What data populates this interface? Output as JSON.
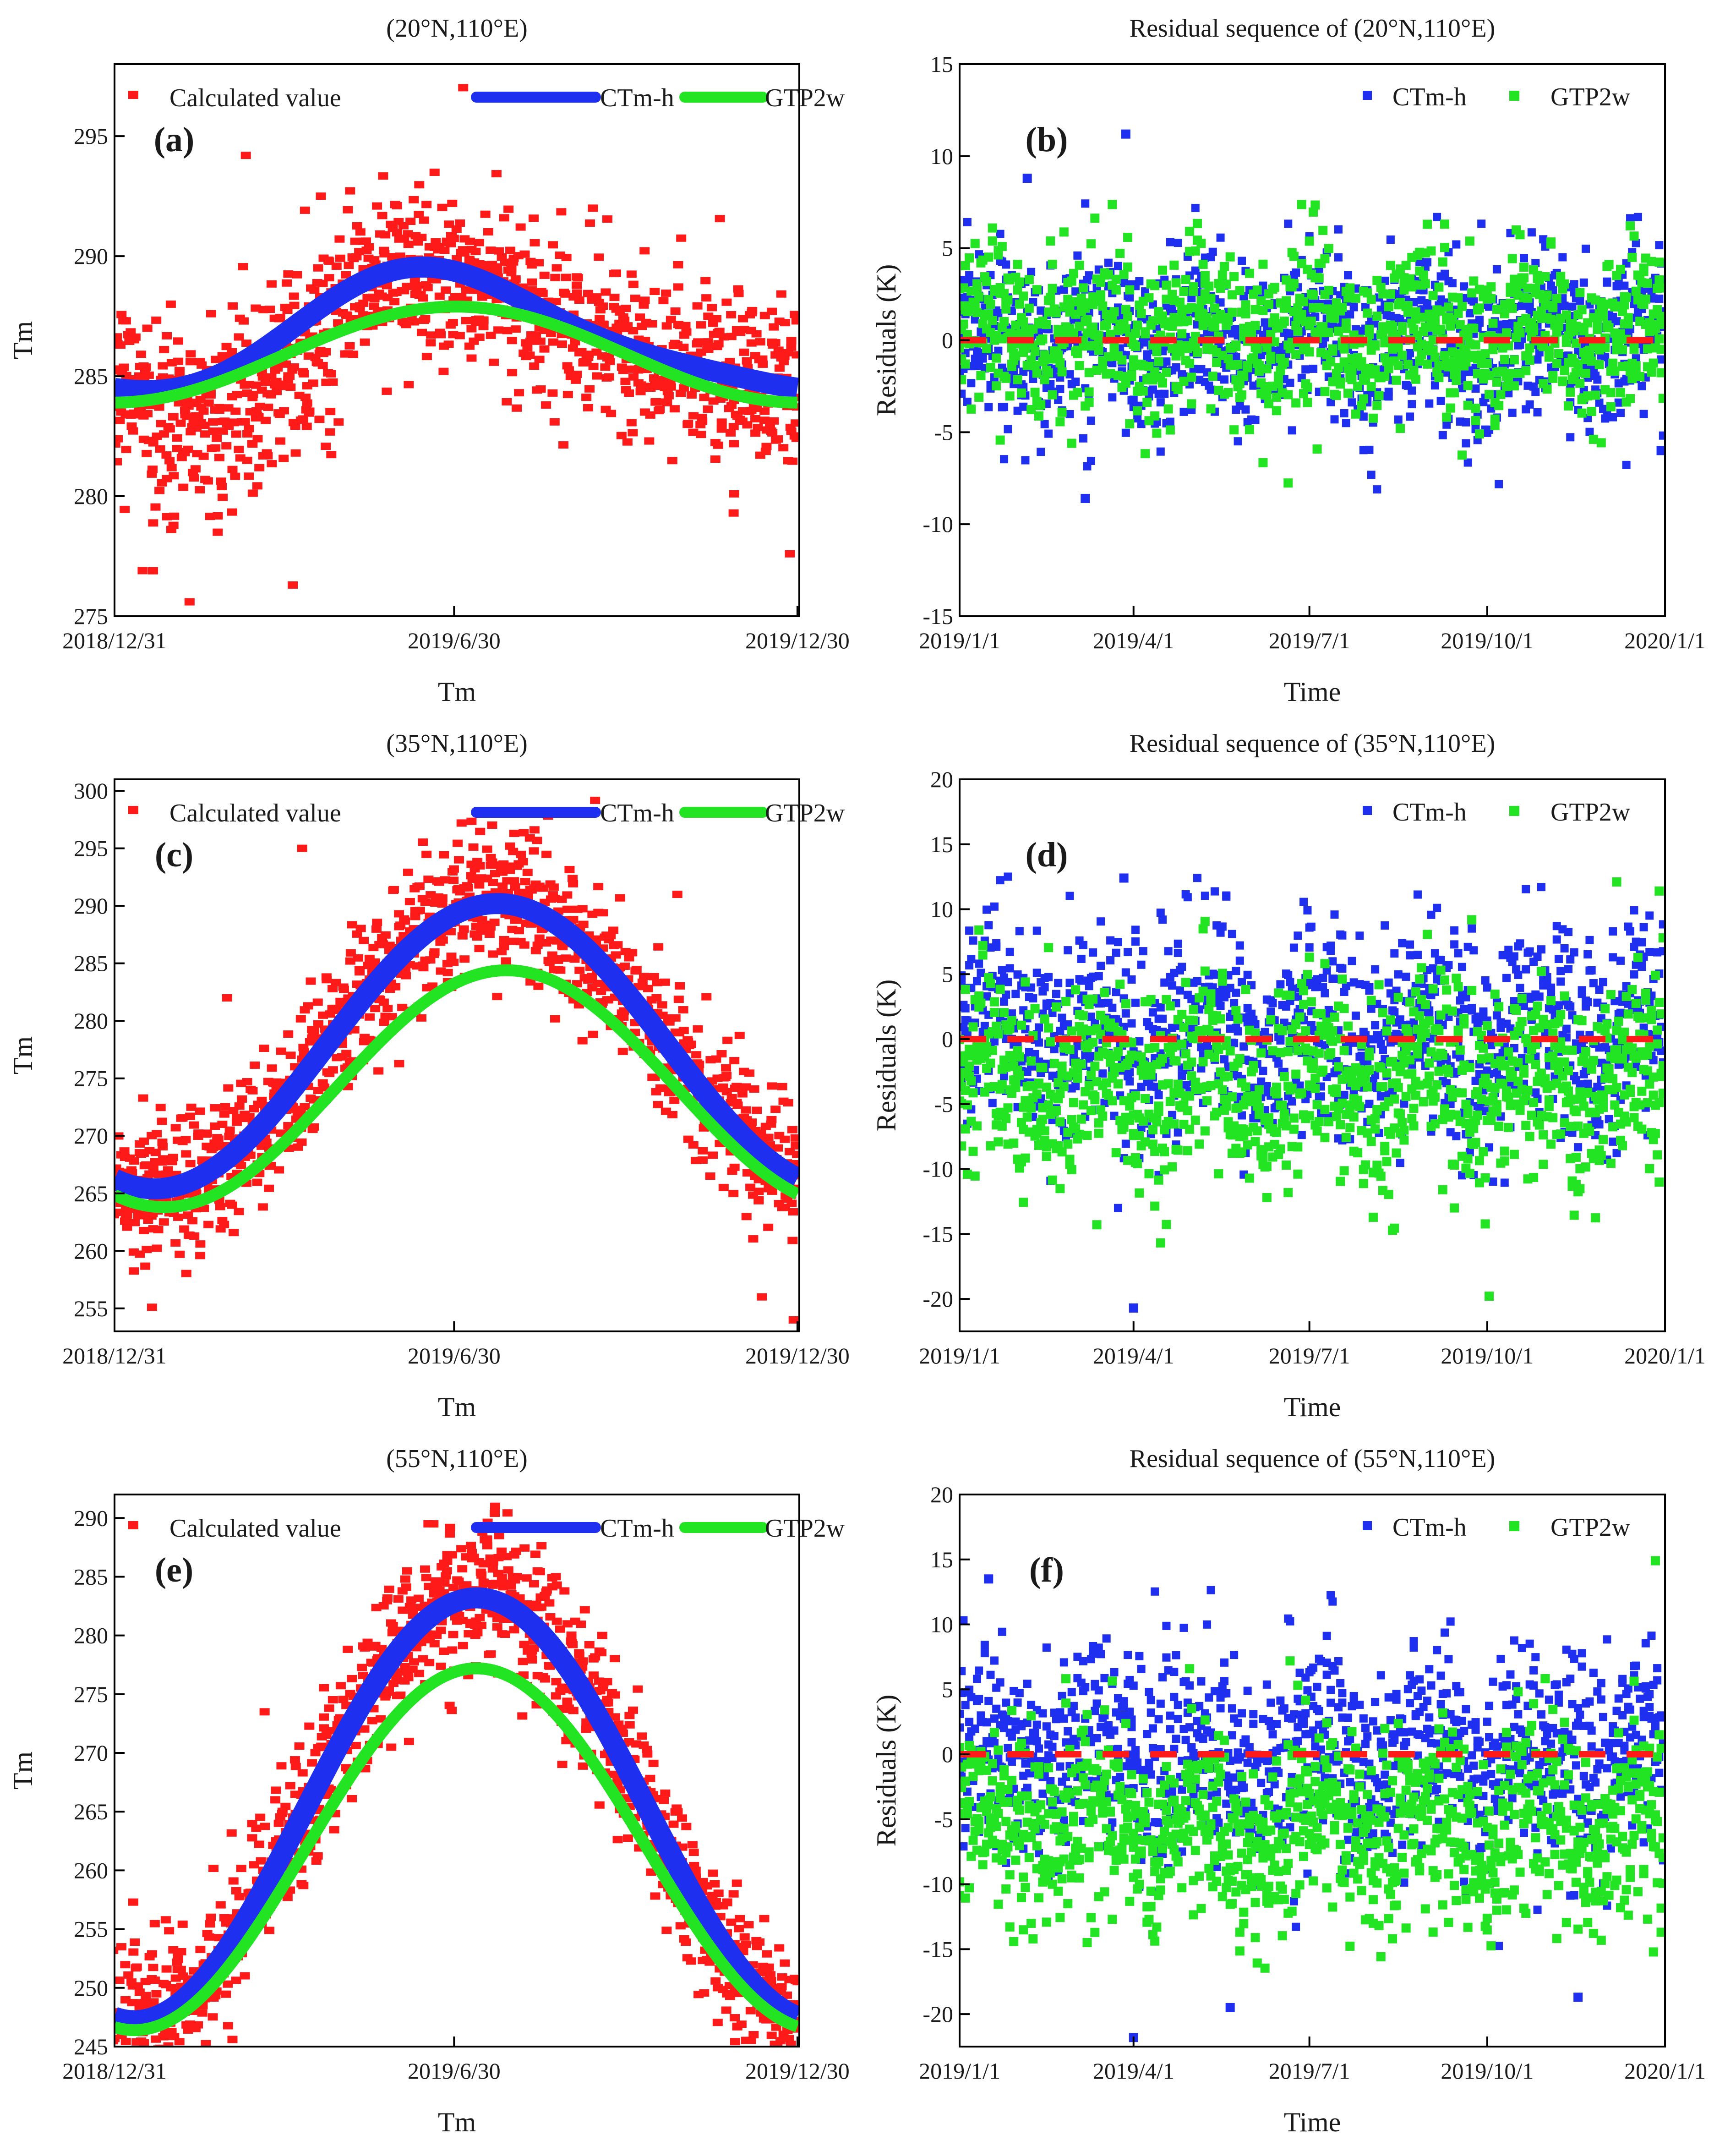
{
  "figure": {
    "description_free": true
  },
  "chart_data": [
    {
      "id": "a",
      "type": "scatter",
      "panel_label": "(a)",
      "title": "(20°N,110°E)",
      "xlabel": "Tm",
      "ylabel": "Tm",
      "xlim": [
        0,
        365
      ],
      "ylim": [
        275,
        298
      ],
      "x_ticks": [
        0,
        181,
        364
      ],
      "x_tick_labels": [
        "2018/12/31",
        "2019/6/30",
        "2019/12/30"
      ],
      "y_ticks": [
        275,
        280,
        285,
        290,
        295
      ],
      "legend": [
        "Calculated value",
        "CTm-h",
        "GTP2w"
      ],
      "legend_position": "top",
      "colors": {
        "calculated": "#ff1a1a",
        "ctmh": "#1f2ff0",
        "gtp2w": "#22e422"
      },
      "ctmh_curve": {
        "mean": 286.7,
        "amplitude": 2.45,
        "peak_day": 175,
        "semiannual_amplitude": 0.5,
        "semiannual_peak_day": 150
      },
      "gtp2w_curve": {
        "mean": 285.9,
        "amplitude": 2.0,
        "peak_day": 182,
        "semiannual_amplitude": 0.0,
        "semiannual_peak_day": 0
      },
      "calculated_spread": 3.0,
      "calculated_low_bias_days": [
        20,
        120
      ],
      "sample_points": [
        {
          "x": 5,
          "y": 284.0
        },
        {
          "x": 15,
          "y": 276.9
        },
        {
          "x": 30,
          "y": 288.0
        },
        {
          "x": 40,
          "y": 275.6
        },
        {
          "x": 55,
          "y": 278.5
        },
        {
          "x": 70,
          "y": 294.2
        },
        {
          "x": 95,
          "y": 276.3
        },
        {
          "x": 110,
          "y": 292.5
        },
        {
          "x": 165,
          "y": 291.5
        },
        {
          "x": 180,
          "y": 292.2
        },
        {
          "x": 230,
          "y": 283.8
        },
        {
          "x": 255,
          "y": 292.0
        },
        {
          "x": 285,
          "y": 282.3
        },
        {
          "x": 330,
          "y": 279.3
        },
        {
          "x": 360,
          "y": 277.6
        }
      ]
    },
    {
      "id": "b",
      "type": "scatter",
      "panel_label": "(b)",
      "title": "Residual sequence of (20°N,110°E)",
      "xlabel": "Time",
      "ylabel": "Residuals (K)",
      "xlim": [
        0,
        365
      ],
      "ylim": [
        -15,
        15
      ],
      "x_ticks": [
        0,
        90,
        181,
        273,
        365
      ],
      "x_tick_labels": [
        "2019/1/1",
        "2019/4/1",
        "2019/7/1",
        "2019/10/1",
        "2020/1/1"
      ],
      "y_ticks": [
        -15,
        -10,
        -5,
        0,
        5,
        10,
        15
      ],
      "legend": [
        "CTm-h",
        "GTP2w"
      ],
      "legend_position": "top-right",
      "colors": {
        "ctmh": "#1f2ff0",
        "gtp2w": "#22e422",
        "zero_line": "#ff1a1a"
      },
      "ctmh_bias": 0.0,
      "gtp2w_bias": 0.3,
      "spread": 2.6,
      "extremes": [
        {
          "x": 35,
          "y": 8.8
        },
        {
          "x": 86,
          "y": 11.2
        },
        {
          "x": 65,
          "y": -8.6
        },
        {
          "x": 363,
          "y": -6.0
        }
      ]
    },
    {
      "id": "c",
      "type": "scatter",
      "panel_label": "(c)",
      "title": "(35°N,110°E)",
      "xlabel": "Tm",
      "ylabel": "Tm",
      "xlim": [
        0,
        365
      ],
      "ylim": [
        253,
        301
      ],
      "x_ticks": [
        0,
        181,
        364
      ],
      "x_tick_labels": [
        "2018/12/31",
        "2019/6/30",
        "2019/12/30"
      ],
      "y_ticks": [
        255,
        260,
        265,
        270,
        275,
        280,
        285,
        290,
        295,
        300
      ],
      "legend": [
        "Calculated value",
        "CTm-h",
        "GTP2w"
      ],
      "legend_position": "top",
      "colors": {
        "calculated": "#ff1a1a",
        "ctmh": "#1f2ff0",
        "gtp2w": "#22e422"
      },
      "ctmh_curve": {
        "mean": 277.8,
        "amplitude": 12.4,
        "peak_day": 204,
        "semiannual_amplitude": 0.0,
        "semiannual_peak_day": 0
      },
      "gtp2w_curve": {
        "mean": 274.1,
        "amplitude": 10.3,
        "peak_day": 209,
        "semiannual_amplitude": 0.0,
        "semiannual_peak_day": 0
      },
      "calculated_spread": 5.5,
      "calculated_low_bias_days": [],
      "sample_points": [
        {
          "x": 20,
          "y": 255.1
        },
        {
          "x": 60,
          "y": 282.0
        },
        {
          "x": 100,
          "y": 295.0
        },
        {
          "x": 185,
          "y": 297.2
        },
        {
          "x": 300,
          "y": 291.0
        },
        {
          "x": 345,
          "y": 256.0
        },
        {
          "x": 362,
          "y": 254.0
        }
      ]
    },
    {
      "id": "d",
      "type": "scatter",
      "panel_label": "(d)",
      "title": "Residual sequence of (35°N,110°E)",
      "xlabel": "Time",
      "ylabel": "Residuals (K)",
      "xlim": [
        0,
        365
      ],
      "ylim": [
        -22.5,
        20
      ],
      "x_ticks": [
        0,
        90,
        181,
        273,
        365
      ],
      "x_tick_labels": [
        "2019/1/1",
        "2019/4/1",
        "2019/7/1",
        "2019/10/1",
        "2020/1/1"
      ],
      "y_ticks": [
        -20,
        -15,
        -10,
        -5,
        0,
        5,
        10,
        15,
        20
      ],
      "legend": [
        "CTm-h",
        "GTP2w"
      ],
      "legend_position": "top-right",
      "colors": {
        "ctmh": "#1f2ff0",
        "gtp2w": "#22e422",
        "zero_line": "#ff1a1a"
      },
      "ctmh_bias": 0.3,
      "gtp2w_bias": -3.7,
      "spread": 4.6,
      "extremes": [
        {
          "x": 85,
          "y": 12.4
        },
        {
          "x": 90,
          "y": -20.7
        },
        {
          "x": 362,
          "y": 11.4
        },
        {
          "x": 340,
          "y": 12.1
        }
      ]
    },
    {
      "id": "e",
      "type": "scatter",
      "panel_label": "(e)",
      "title": "(55°N,110°E)",
      "xlabel": "Tm",
      "ylabel": "Tm",
      "xlim": [
        0,
        365
      ],
      "ylim": [
        245,
        292
      ],
      "x_ticks": [
        0,
        181,
        364
      ],
      "x_tick_labels": [
        "2018/12/31",
        "2019/6/30",
        "2019/12/30"
      ],
      "y_ticks": [
        245,
        250,
        255,
        260,
        265,
        270,
        275,
        280,
        285,
        290
      ],
      "legend": [
        "Calculated value",
        "CTm-h",
        "GTP2w"
      ],
      "legend_position": "top",
      "colors": {
        "calculated": "#ff1a1a",
        "ctmh": "#1f2ff0",
        "gtp2w": "#22e422"
      },
      "ctmh_curve": {
        "mean": 265.2,
        "amplitude": 18.0,
        "peak_day": 193,
        "semiannual_amplitude": 0.0,
        "semiannual_peak_day": 0
      },
      "gtp2w_curve": {
        "mean": 261.8,
        "amplitude": 15.4,
        "peak_day": 193,
        "semiannual_amplitude": 0.0,
        "semiannual_peak_day": 0
      },
      "calculated_spread": 5.5,
      "calculated_low_bias_days": [],
      "sample_points": [
        {
          "x": 10,
          "y": 257.3
        },
        {
          "x": 80,
          "y": 273.5
        },
        {
          "x": 170,
          "y": 289.5
        },
        {
          "x": 205,
          "y": 288.5
        },
        {
          "x": 260,
          "y": 280.0
        },
        {
          "x": 330,
          "y": 258.0
        },
        {
          "x": 355,
          "y": 245.5
        }
      ]
    },
    {
      "id": "f",
      "type": "scatter",
      "panel_label": "(f)",
      "title": "Residual sequence of (55°N,110°E)",
      "xlabel": "Time",
      "ylabel": "Residuals (K)",
      "xlim": [
        0,
        365
      ],
      "ylim": [
        -22.5,
        20
      ],
      "x_ticks": [
        0,
        90,
        181,
        273,
        365
      ],
      "x_tick_labels": [
        "2019/1/1",
        "2019/4/1",
        "2019/7/1",
        "2019/10/1",
        "2020/1/1"
      ],
      "y_ticks": [
        -20,
        -15,
        -10,
        -5,
        0,
        5,
        10,
        15,
        20
      ],
      "legend": [
        "CTm-h",
        "GTP2w"
      ],
      "legend_position": "top-right",
      "colors": {
        "ctmh": "#1f2ff0",
        "gtp2w": "#22e422",
        "zero_line": "#ff1a1a"
      },
      "ctmh_bias": 0.0,
      "gtp2w_bias": -5.8,
      "spread": 4.4,
      "extremes": [
        {
          "x": 15,
          "y": 13.5
        },
        {
          "x": 90,
          "y": -21.8
        },
        {
          "x": 360,
          "y": 14.9
        },
        {
          "x": 140,
          "y": -19.5
        },
        {
          "x": 320,
          "y": -18.7
        }
      ]
    }
  ]
}
